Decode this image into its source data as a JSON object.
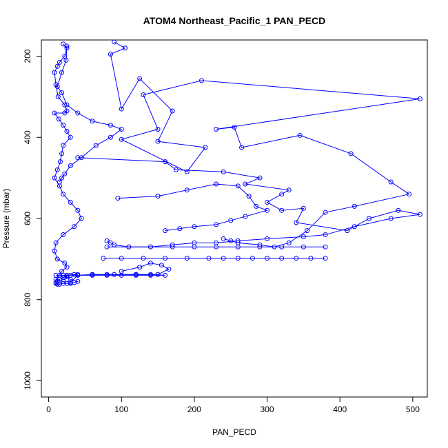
{
  "chart_data": {
    "type": "line",
    "title": "ATOM4 Northeast_Pacific_1 PAN_PECD",
    "xlabel": "PAN_PECD",
    "ylabel": "Pressure (mbar)",
    "xlim": [
      -10,
      520
    ],
    "ylim": [
      1040,
      160
    ],
    "y_reversed": true,
    "x_ticks": [
      0,
      100,
      200,
      300,
      400,
      500
    ],
    "y_ticks": [
      200,
      400,
      600,
      800,
      1000
    ],
    "grid": false,
    "legend": "none",
    "series": [
      {
        "marker": "open-circle",
        "color": "#0000ff",
        "x": [
          20,
          25,
          22,
          15,
          12,
          8,
          10,
          13,
          22,
          25,
          22,
          8,
          14,
          20,
          25,
          30,
          20,
          18,
          16,
          12,
          8,
          15,
          20,
          30,
          40,
          45,
          35,
          20,
          10,
          8,
          12,
          22,
          25,
          18,
          15,
          10,
          20,
          25,
          30,
          35,
          40,
          30,
          22,
          25,
          35,
          40,
          30,
          25,
          20,
          15,
          12,
          10,
          10,
          12,
          15,
          20,
          25,
          30,
          40,
          60,
          80,
          120,
          140,
          160,
          140,
          120,
          100,
          80,
          60,
          40,
          20,
          10
        ],
        "y": [
          170,
          180,
          200,
          215,
          225,
          240,
          270,
          300,
          320,
          335,
          340,
          340,
          355,
          370,
          385,
          400,
          420,
          440,
          460,
          480,
          500,
          520,
          540,
          560,
          580,
          600,
          620,
          640,
          660,
          680,
          700,
          710,
          720,
          730,
          740,
          750,
          755,
          760,
          760,
          758,
          755,
          750,
          745,
          740,
          738,
          738,
          740,
          742,
          745,
          750,
          755,
          758,
          760,
          762,
          762,
          760,
          760,
          758,
          740,
          738,
          738,
          738,
          738,
          740,
          740,
          740,
          740,
          740,
          740,
          740,
          740,
          740
        ]
      },
      {
        "marker": "open-circle",
        "color": "#0000ff",
        "x": [
          25,
          24,
          18,
          12,
          18,
          25,
          40,
          60,
          85,
          100,
          85,
          65,
          45,
          30,
          22,
          18,
          15
        ],
        "y": [
          175,
          210,
          240,
          275,
          290,
          320,
          340,
          360,
          370,
          380,
          400,
          420,
          450,
          470,
          490,
          500,
          510
        ]
      },
      {
        "marker": "open-circle",
        "color": "#0000ff",
        "x": [
          90,
          105,
          85,
          100,
          125,
          170,
          150,
          215,
          190,
          100,
          150,
          130,
          210,
          510,
          230,
          255,
          265,
          345,
          415,
          470,
          495,
          420,
          380,
          355,
          330,
          310,
          290,
          260,
          250,
          240
        ],
        "y": [
          165,
          180,
          195,
          330,
          255,
          335,
          410,
          425,
          485,
          405,
          380,
          295,
          260,
          305,
          380,
          375,
          425,
          395,
          440,
          510,
          540,
          570,
          585,
          630,
          660,
          670,
          665,
          660,
          655,
          650
        ]
      },
      {
        "marker": "open-circle",
        "color": "#0000ff",
        "x": [
          40,
          160,
          175,
          240,
          290,
          270,
          330,
          320,
          300,
          320,
          350,
          340,
          410,
          440,
          480,
          510,
          470,
          420,
          380,
          350,
          300,
          260,
          230,
          200,
          170,
          140,
          110,
          90,
          85,
          80
        ],
        "y": [
          450,
          460,
          480,
          485,
          500,
          515,
          530,
          540,
          560,
          580,
          575,
          610,
          630,
          600,
          580,
          590,
          600,
          620,
          640,
          645,
          650,
          655,
          660,
          660,
          665,
          670,
          670,
          665,
          660,
          655
        ]
      },
      {
        "marker": "open-circle",
        "color": "#0000ff",
        "x": [
          95,
          150,
          190,
          230,
          260,
          275,
          285,
          300,
          270,
          250,
          230,
          200,
          180,
          160
        ],
        "y": [
          550,
          545,
          530,
          515,
          520,
          545,
          570,
          580,
          595,
          605,
          615,
          620,
          625,
          630
        ]
      },
      {
        "marker": "open-circle",
        "color": "#0000ff",
        "x": [
          75,
          100,
          130,
          160,
          190,
          220,
          240,
          260,
          280,
          300,
          320,
          340,
          360,
          380
        ],
        "y": [
          698,
          698,
          698,
          698,
          698,
          698,
          698,
          698,
          698,
          698,
          698,
          698,
          698,
          698
        ]
      },
      {
        "marker": "open-circle",
        "color": "#0000ff",
        "x": [
          80,
          110,
          140,
          170,
          200,
          230,
          260,
          290,
          320,
          350,
          380
        ],
        "y": [
          670,
          670,
          670,
          670,
          670,
          670,
          670,
          670,
          670,
          670,
          670
        ]
      },
      {
        "marker": "open-circle",
        "color": "#0000ff",
        "x": [
          60,
          90,
          120,
          150,
          165,
          155,
          140,
          125,
          100
        ],
        "y": [
          738,
          738,
          738,
          738,
          725,
          715,
          710,
          720,
          730
        ]
      }
    ]
  }
}
